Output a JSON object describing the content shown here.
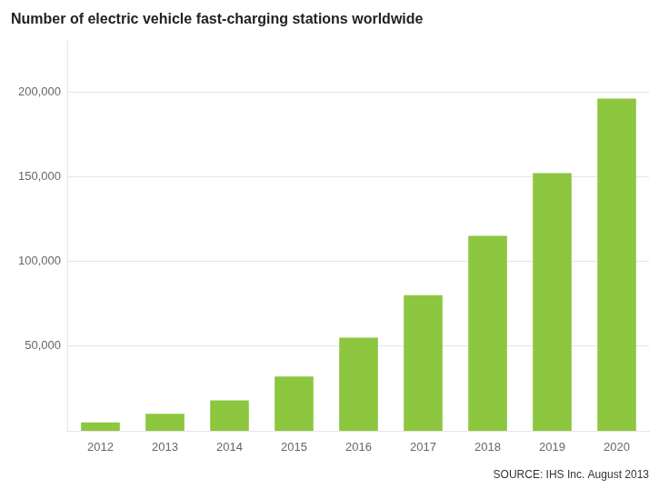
{
  "chart_data": {
    "type": "bar",
    "title": "Number of electric vehicle fast-charging stations worldwide",
    "annotation": "SOURCE: IHS Inc. August 2013",
    "categories": [
      "2012",
      "2013",
      "2014",
      "2015",
      "2016",
      "2017",
      "2018",
      "2019",
      "2020"
    ],
    "values": [
      5000,
      10000,
      18000,
      32000,
      55000,
      80000,
      115000,
      152000,
      196000
    ],
    "color": "#8dc63f",
    "ylim": [
      0,
      230000
    ],
    "yticks": [
      {
        "value": 50000,
        "label": "50,000"
      },
      {
        "value": 100000,
        "label": "100,000"
      },
      {
        "value": 150000,
        "label": "150,000"
      },
      {
        "value": 200000,
        "label": "200,000"
      }
    ],
    "grid": true
  }
}
